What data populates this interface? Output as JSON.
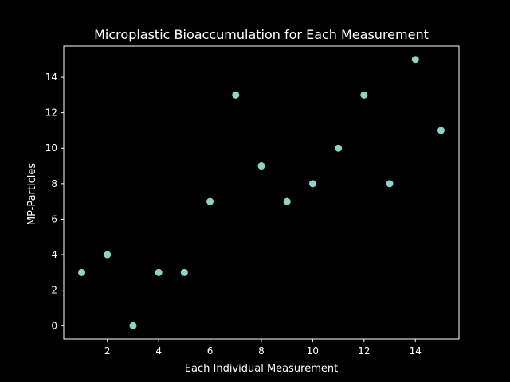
{
  "chart_data": {
    "type": "scatter",
    "title": "Microplastic Bioaccumulation for Each Measurement",
    "xlabel": "Each Individual Measurement",
    "ylabel": "MP-Particles",
    "x": [
      1,
      2,
      3,
      4,
      5,
      6,
      7,
      8,
      9,
      10,
      11,
      12,
      13,
      14,
      15
    ],
    "y": [
      3,
      4,
      0,
      3,
      3,
      7,
      13,
      9,
      7,
      8,
      10,
      13,
      8,
      15,
      11
    ],
    "xlim": [
      0.3,
      15.7
    ],
    "ylim": [
      -0.75,
      15.75
    ],
    "xticks": [
      2,
      4,
      6,
      8,
      10,
      12,
      14
    ],
    "yticks": [
      0,
      2,
      4,
      6,
      8,
      10,
      12,
      14
    ],
    "grid": false,
    "colors": {
      "background": "#000000",
      "foreground": "#ffffff",
      "marker": "#8dd3c7"
    }
  }
}
